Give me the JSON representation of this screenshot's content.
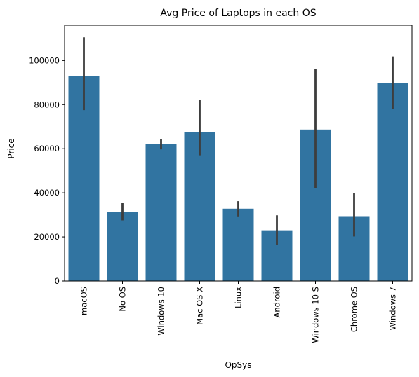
{
  "chart_data": {
    "type": "bar",
    "title": "Avg Price of Laptops in each OS",
    "xlabel": "OpSys",
    "ylabel": "Price",
    "ylim": [
      0,
      116000
    ],
    "yticks": [
      0,
      20000,
      40000,
      60000,
      80000,
      100000
    ],
    "categories": [
      "macOS",
      "No OS",
      "Windows 10",
      "Mac OS X",
      "Linux",
      "Android",
      "Windows 10 S",
      "Chrome OS",
      "Windows 7"
    ],
    "values": [
      93000,
      31200,
      62000,
      67400,
      32800,
      23000,
      68700,
      29400,
      89800
    ],
    "error_low": [
      77500,
      27500,
      59700,
      57000,
      29300,
      16500,
      42000,
      20200,
      78000
    ],
    "error_high": [
      110500,
      35300,
      64300,
      82000,
      36200,
      29800,
      96300,
      39800,
      101800
    ],
    "grid": false,
    "colors": {
      "bar": "#3174a1",
      "error": "#3d3d3d",
      "axis": "#000000"
    }
  }
}
